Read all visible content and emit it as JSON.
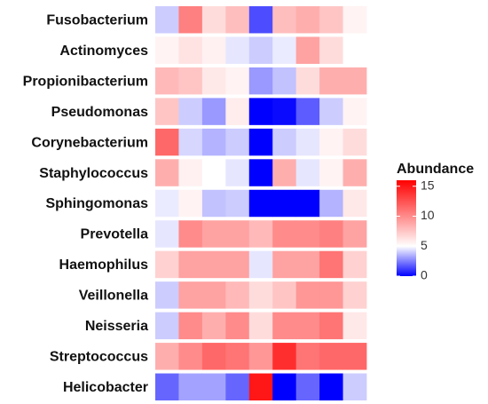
{
  "chart_data": {
    "type": "heatmap",
    "title": "",
    "xlabel": "",
    "ylabel": "",
    "rows": [
      "Fusobacterium",
      "Actinomyces",
      "Propionibacterium",
      "Pseudomonas",
      "Corynebacterium",
      "Staphylococcus",
      "Sphingomonas",
      "Prevotella",
      "Haemophilus",
      "Veillonella",
      "Neisseria",
      "Streptococcus",
      "Helicobacter"
    ],
    "n_columns": 9,
    "values": [
      [
        4.0,
        10.5,
        6.5,
        7.8,
        1.5,
        7.8,
        8.5,
        7.5,
        5.5
      ],
      [
        5.5,
        6.2,
        5.6,
        4.5,
        4.0,
        4.6,
        9.0,
        6.5,
        5.0
      ],
      [
        8.0,
        7.5,
        6.0,
        5.5,
        3.0,
        3.8,
        6.5,
        8.5,
        8.5
      ],
      [
        7.5,
        4.0,
        3.0,
        5.8,
        0.0,
        0.2,
        1.8,
        4.0,
        5.5
      ],
      [
        11.5,
        4.2,
        3.5,
        4.0,
        0.0,
        4.0,
        4.5,
        5.5,
        6.5
      ],
      [
        8.5,
        5.6,
        5.0,
        4.5,
        0.0,
        8.5,
        4.5,
        5.5,
        8.5
      ],
      [
        4.6,
        5.5,
        3.8,
        4.0,
        0.0,
        0.0,
        0.0,
        3.5,
        6.0
      ],
      [
        4.5,
        10.0,
        9.0,
        9.0,
        8.0,
        10.0,
        10.0,
        10.5,
        9.0
      ],
      [
        7.0,
        9.0,
        9.0,
        9.0,
        4.5,
        9.0,
        9.0,
        11.0,
        7.0
      ],
      [
        4.0,
        9.0,
        9.0,
        8.0,
        6.5,
        7.5,
        9.5,
        9.5,
        7.0
      ],
      [
        4.0,
        10.0,
        8.5,
        10.0,
        6.5,
        10.0,
        10.0,
        11.0,
        6.0
      ],
      [
        8.5,
        10.0,
        11.5,
        11.0,
        9.5,
        14.0,
        11.0,
        11.5,
        11.5
      ],
      [
        2.0,
        3.2,
        3.2,
        2.0,
        15.0,
        0.0,
        2.0,
        0.0,
        4.0
      ]
    ],
    "colorbar": {
      "title": "Abundance",
      "min": 0,
      "mid": 5,
      "max": 16,
      "ticks": [
        0,
        5,
        10,
        15
      ],
      "low_color": "#0000ff",
      "mid_color": "#ffffff",
      "high_color": "#ff0000"
    },
    "legend_position": "right",
    "grid": false
  }
}
